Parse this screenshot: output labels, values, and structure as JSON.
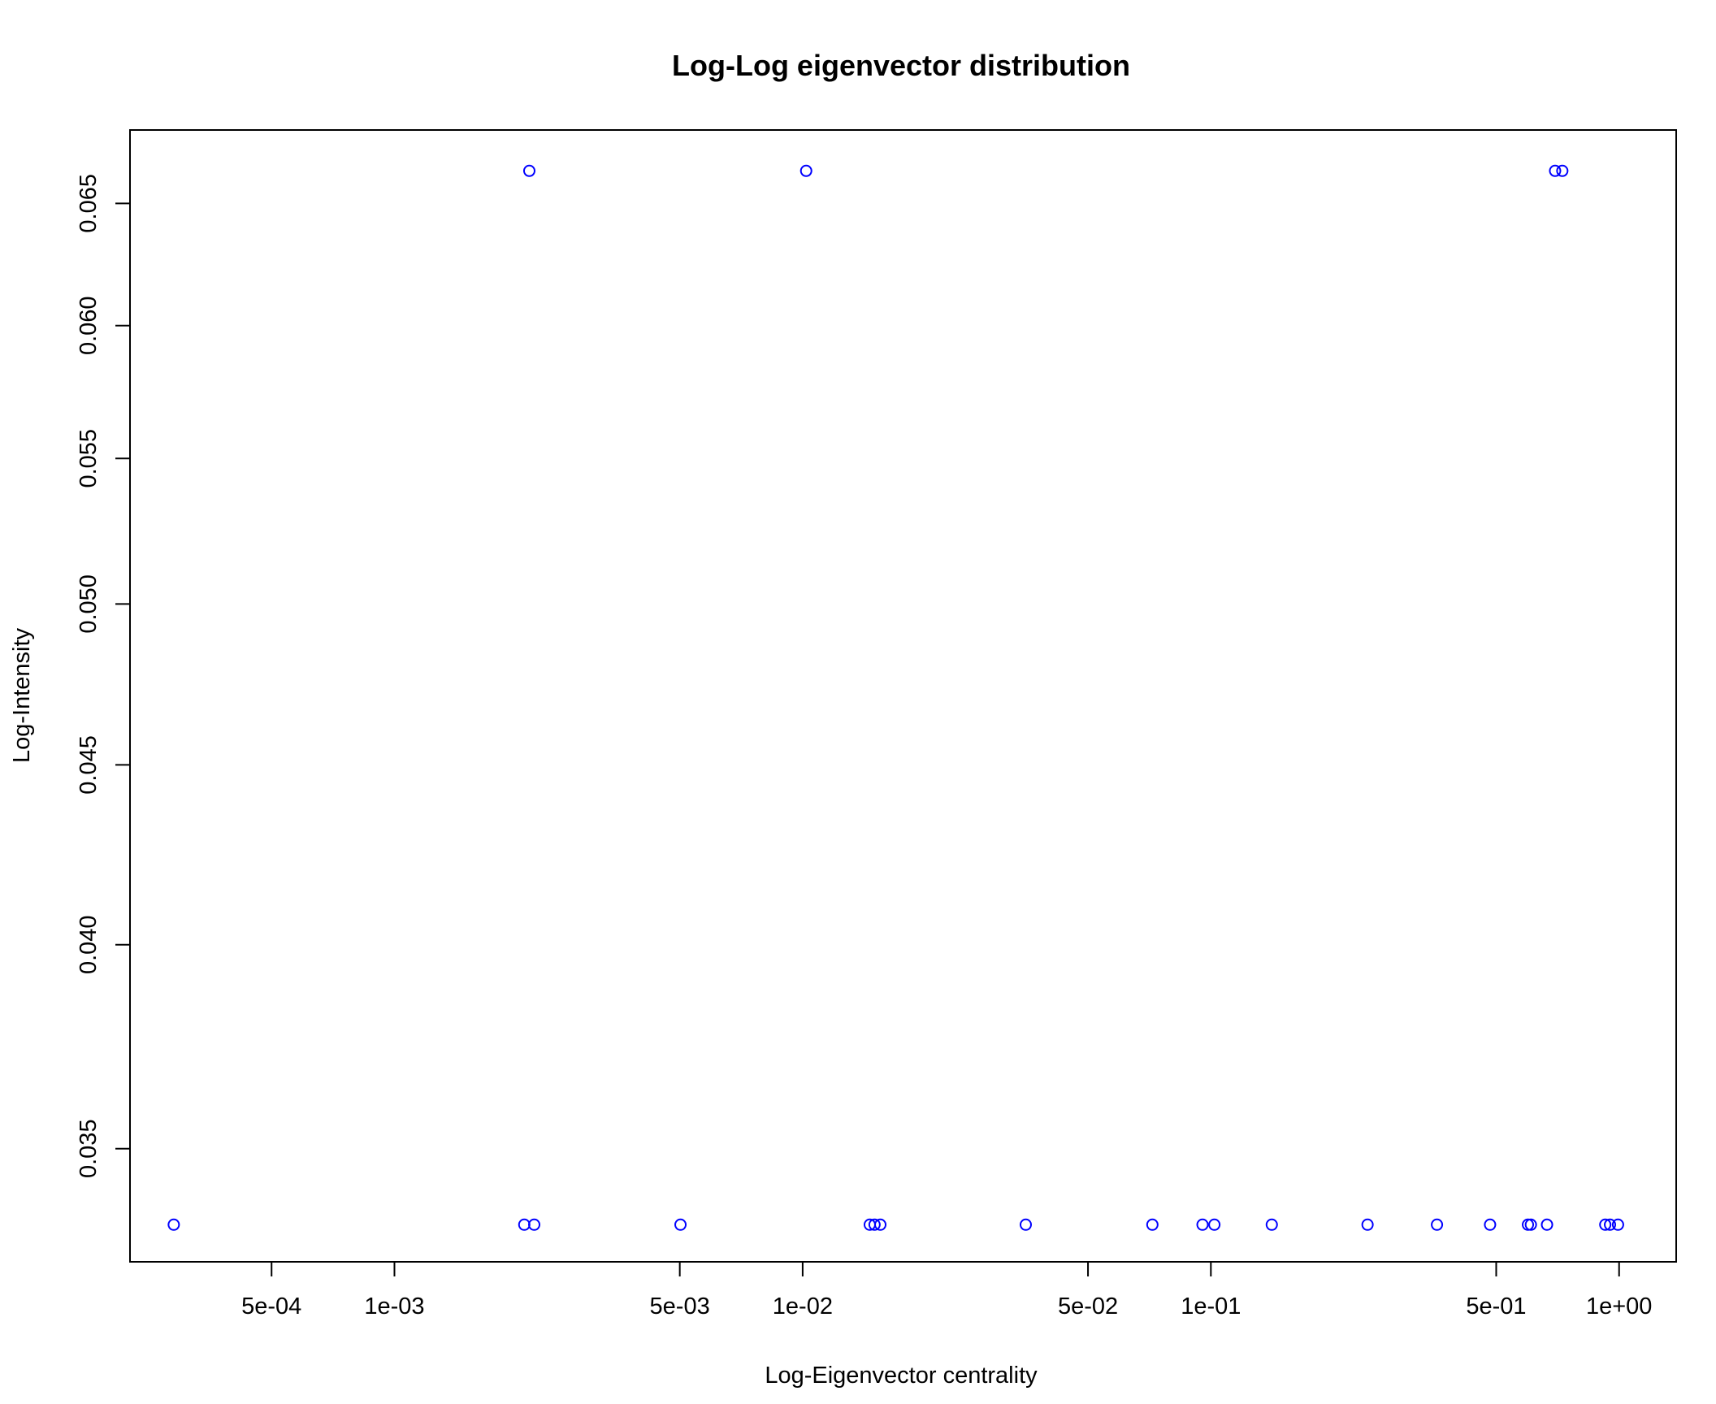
{
  "chart_data": {
    "type": "scatter",
    "title": "Log-Log eigenvector distribution",
    "xlabel": "Log-Eigenvector centrality",
    "ylabel": "Log-Intensity",
    "x_scale": "log",
    "y_scale": "log",
    "xlim": [
      0.000225,
      1.38
    ],
    "ylim": [
      0.0325,
      0.0682
    ],
    "x_ticks": [
      {
        "value": 0.0005,
        "label": "5e-04"
      },
      {
        "value": 0.001,
        "label": "1e-03"
      },
      {
        "value": 0.005,
        "label": "5e-03"
      },
      {
        "value": 0.01,
        "label": "1e-02"
      },
      {
        "value": 0.05,
        "label": "5e-02"
      },
      {
        "value": 0.1,
        "label": "1e-01"
      },
      {
        "value": 0.5,
        "label": "5e-01"
      },
      {
        "value": 1,
        "label": "1e+00"
      }
    ],
    "y_ticks": [
      {
        "value": 0.035,
        "label": "0.035"
      },
      {
        "value": 0.04,
        "label": "0.040"
      },
      {
        "value": 0.045,
        "label": "0.045"
      },
      {
        "value": 0.05,
        "label": "0.050"
      },
      {
        "value": 0.055,
        "label": "0.055"
      },
      {
        "value": 0.06,
        "label": "0.060"
      },
      {
        "value": 0.065,
        "label": "0.065"
      }
    ],
    "grid": false,
    "point_color": "#0000FF",
    "points": [
      {
        "x": 0.000288,
        "y": 0.0333
      },
      {
        "x": 0.00208,
        "y": 0.0333
      },
      {
        "x": 0.0022,
        "y": 0.0333
      },
      {
        "x": 0.00214,
        "y": 0.0664
      },
      {
        "x": 0.00502,
        "y": 0.0333
      },
      {
        "x": 0.0102,
        "y": 0.0664
      },
      {
        "x": 0.0146,
        "y": 0.0333
      },
      {
        "x": 0.015,
        "y": 0.0333
      },
      {
        "x": 0.0155,
        "y": 0.0333
      },
      {
        "x": 0.0352,
        "y": 0.0333
      },
      {
        "x": 0.0719,
        "y": 0.0333
      },
      {
        "x": 0.0954,
        "y": 0.0333
      },
      {
        "x": 0.102,
        "y": 0.0333
      },
      {
        "x": 0.141,
        "y": 0.0333
      },
      {
        "x": 0.242,
        "y": 0.0333
      },
      {
        "x": 0.358,
        "y": 0.0333
      },
      {
        "x": 0.483,
        "y": 0.0333
      },
      {
        "x": 0.598,
        "y": 0.0333
      },
      {
        "x": 0.608,
        "y": 0.0333
      },
      {
        "x": 0.666,
        "y": 0.0333
      },
      {
        "x": 0.697,
        "y": 0.0664
      },
      {
        "x": 0.726,
        "y": 0.0664
      },
      {
        "x": 0.925,
        "y": 0.0333
      },
      {
        "x": 0.95,
        "y": 0.0333
      },
      {
        "x": 0.994,
        "y": 0.0333
      }
    ]
  }
}
